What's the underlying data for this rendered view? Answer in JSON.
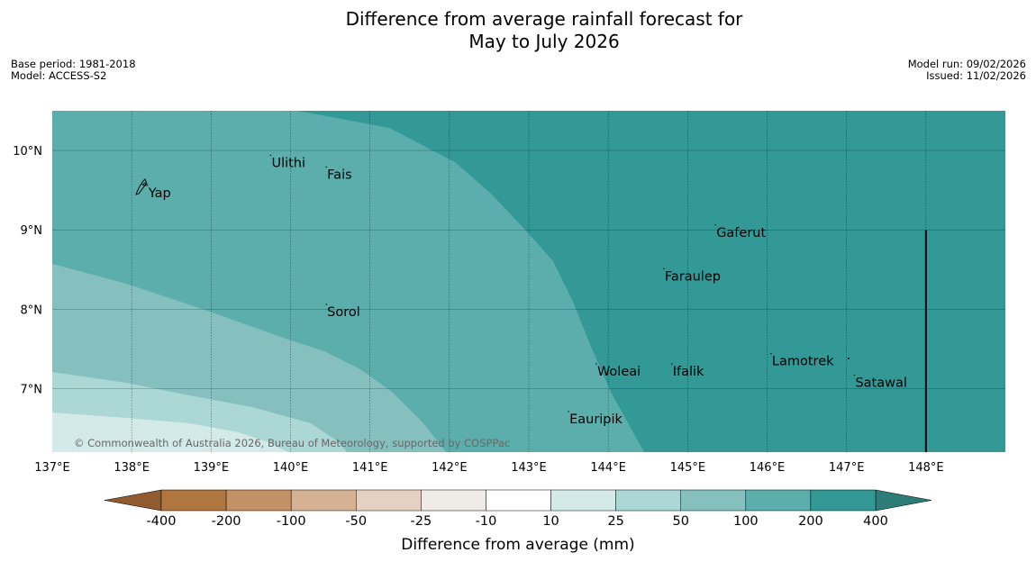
{
  "title": {
    "line1": "Difference from average rainfall forecast for",
    "line2": "May to July 2026"
  },
  "meta": {
    "base_period": "Base period: 1981-2018",
    "model": "Model: ACCESS-S2",
    "model_run": "Model run: 09/02/2026",
    "issued": "Issued: 11/02/2026"
  },
  "map": {
    "lon_range": [
      137.0,
      149.0
    ],
    "lat_range": [
      6.2,
      10.5
    ],
    "lon_ticks": [
      {
        "value": 137,
        "label": "137°E"
      },
      {
        "value": 138,
        "label": "138°E"
      },
      {
        "value": 139,
        "label": "139°E"
      },
      {
        "value": 140,
        "label": "140°E"
      },
      {
        "value": 141,
        "label": "141°E"
      },
      {
        "value": 142,
        "label": "142°E"
      },
      {
        "value": 143,
        "label": "143°E"
      },
      {
        "value": 144,
        "label": "144°E"
      },
      {
        "value": 145,
        "label": "145°E"
      },
      {
        "value": 146,
        "label": "146°E"
      },
      {
        "value": 147,
        "label": "147°E"
      },
      {
        "value": 148,
        "label": "148°E"
      }
    ],
    "lat_ticks": [
      {
        "value": 10,
        "label": "10°N"
      },
      {
        "value": 9,
        "label": "9°N"
      },
      {
        "value": 8,
        "label": "8°N"
      },
      {
        "value": 7,
        "label": "7°N"
      }
    ],
    "places": [
      {
        "name": "Ulithi",
        "lon": 139.75,
        "lat": 9.85
      },
      {
        "name": "Fais",
        "lon": 140.45,
        "lat": 9.7
      },
      {
        "name": "Yap",
        "lon": 138.2,
        "lat": 9.47
      },
      {
        "name": "Gaferut",
        "lon": 145.35,
        "lat": 8.97
      },
      {
        "name": "Faraulep",
        "lon": 144.7,
        "lat": 8.42
      },
      {
        "name": "Sorol",
        "lon": 140.45,
        "lat": 7.97
      },
      {
        "name": "Lamotrek",
        "lon": 146.05,
        "lat": 7.35
      },
      {
        "name": "Woleai",
        "lon": 143.85,
        "lat": 7.22
      },
      {
        "name": "Ifalik",
        "lon": 144.8,
        "lat": 7.22
      },
      {
        "name": "Satawal",
        "lon": 147.1,
        "lat": 7.08
      },
      {
        "name": "Eauripik",
        "lon": 143.5,
        "lat": 6.62
      }
    ],
    "boundary_line": {
      "lon": 148.0,
      "lat_from": 6.2,
      "lat_to": 9.0
    },
    "copyright": "© Commonwealth of Australia 2026, Bureau of Meteorology, supported by COSPPac"
  },
  "colorbar": {
    "title": "Difference from average (mm)",
    "bins": [
      {
        "color": "#b07640"
      },
      {
        "color": "#c29167"
      },
      {
        "color": "#d5b293"
      },
      {
        "color": "#e5d1c2"
      },
      {
        "color": "#efebe7"
      },
      {
        "color": "#ffffff"
      },
      {
        "color": "#d4eae9"
      },
      {
        "color": "#abd7d5"
      },
      {
        "color": "#86c0be"
      },
      {
        "color": "#5caead"
      },
      {
        "color": "#339997"
      }
    ],
    "low_extend_color": "#905b2f",
    "high_extend_color": "#2d7c7a",
    "labels": [
      "-400",
      "-200",
      "-100",
      "-50",
      "-25",
      "-10",
      "10",
      "25",
      "50",
      "100",
      "200",
      "400"
    ]
  },
  "colors": {
    "c_10_25": "#d4eae9",
    "c_25_50": "#abd7d5",
    "c_50_100": "#86c0be",
    "c_100_200": "#5caead",
    "c_200_400": "#339997"
  }
}
